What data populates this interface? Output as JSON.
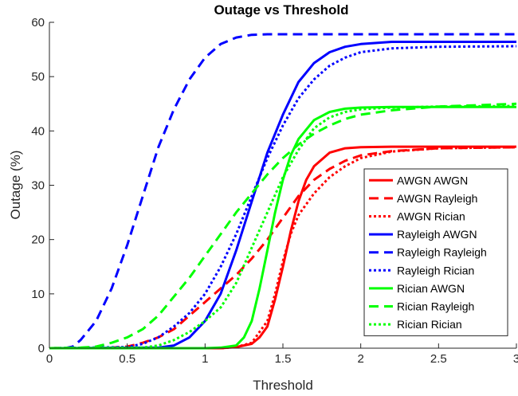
{
  "chart_data": {
    "type": "line",
    "title": "Outage vs Threshold",
    "xlabel": "Threshold",
    "ylabel": "Outage (%)",
    "xlim": [
      0,
      3
    ],
    "ylim": [
      0,
      60
    ],
    "xticks": [
      0,
      0.5,
      1,
      1.5,
      2,
      2.5,
      3
    ],
    "xtick_labels": [
      "0",
      "0.5",
      "1",
      "1.5",
      "2",
      "2.5",
      "3"
    ],
    "yticks": [
      0,
      10,
      20,
      30,
      40,
      50,
      60
    ],
    "ytick_labels": [
      "0",
      "10",
      "20",
      "30",
      "40",
      "50",
      "60"
    ],
    "grid": false,
    "legend_position": "right",
    "colors": {
      "AWGN": "#ff0000",
      "Rayleigh": "#0000ff",
      "Rician": "#00ff00"
    },
    "series": [
      {
        "name": "AWGN AWGN",
        "color": "#ff0000",
        "style": "solid",
        "x": [
          0,
          1.1,
          1.2,
          1.3,
          1.35,
          1.4,
          1.45,
          1.5,
          1.55,
          1.6,
          1.65,
          1.7,
          1.8,
          1.9,
          2.0,
          2.2,
          2.5,
          3.0
        ],
        "y": [
          0,
          0,
          0.2,
          0.8,
          2,
          4,
          9,
          15,
          21.5,
          27,
          31,
          33.5,
          36,
          36.8,
          37,
          37.1,
          37.1,
          37.1
        ]
      },
      {
        "name": "AWGN Rayleigh",
        "color": "#ff0000",
        "style": "dashed",
        "x": [
          0,
          0.4,
          0.5,
          0.6,
          0.7,
          0.8,
          0.9,
          1.0,
          1.1,
          1.2,
          1.3,
          1.4,
          1.5,
          1.6,
          1.7,
          1.8,
          1.9,
          2.0,
          2.2,
          2.5,
          3.0
        ],
        "y": [
          0,
          0.1,
          0.3,
          1,
          2,
          3.5,
          6,
          8.5,
          11,
          13.5,
          16.5,
          20,
          24,
          28,
          31,
          33,
          34.5,
          35.5,
          36.3,
          36.8,
          37
        ]
      },
      {
        "name": "AWGN Rician",
        "color": "#ff0000",
        "style": "dotted",
        "x": [
          0,
          1.1,
          1.2,
          1.3,
          1.4,
          1.45,
          1.5,
          1.55,
          1.6,
          1.7,
          1.8,
          1.9,
          2.0,
          2.2,
          2.5,
          3.0
        ],
        "y": [
          0,
          0,
          0.2,
          1,
          5,
          10,
          16,
          21,
          24.5,
          28.5,
          31.5,
          33.5,
          35,
          36.2,
          36.8,
          37
        ]
      },
      {
        "name": "Rayleigh AWGN",
        "color": "#0000ff",
        "style": "solid",
        "x": [
          0,
          0.7,
          0.8,
          0.9,
          1.0,
          1.1,
          1.2,
          1.3,
          1.4,
          1.5,
          1.6,
          1.7,
          1.8,
          1.9,
          2.0,
          2.2,
          2.5,
          3.0
        ],
        "y": [
          0,
          0.1,
          0.5,
          2,
          5,
          10,
          18,
          27,
          36,
          43,
          49,
          52.5,
          54.5,
          55.5,
          56,
          56.4,
          56.4,
          56.4
        ]
      },
      {
        "name": "Rayleigh Rayleigh",
        "color": "#0000ff",
        "style": "dashed",
        "x": [
          0,
          0.1,
          0.15,
          0.2,
          0.3,
          0.4,
          0.5,
          0.6,
          0.7,
          0.8,
          0.9,
          1.0,
          1.1,
          1.2,
          1.3,
          1.4,
          1.5,
          1.6,
          1.8,
          2.0,
          2.5,
          3.0
        ],
        "y": [
          0,
          0,
          0.3,
          1.5,
          5,
          11,
          19,
          28,
          37,
          44,
          49.5,
          53.5,
          56,
          57.2,
          57.7,
          57.8,
          57.8,
          57.8,
          57.8,
          57.8,
          57.8,
          57.8
        ]
      },
      {
        "name": "Rayleigh Rician",
        "color": "#0000ff",
        "style": "dotted",
        "x": [
          0,
          0.5,
          0.6,
          0.7,
          0.8,
          0.9,
          1.0,
          1.1,
          1.2,
          1.3,
          1.4,
          1.5,
          1.6,
          1.7,
          1.8,
          1.9,
          2.0,
          2.2,
          2.5,
          3.0
        ],
        "y": [
          0,
          0.2,
          0.8,
          2,
          4,
          6.5,
          10,
          15,
          21,
          28,
          35,
          41,
          46,
          49.5,
          52,
          53.5,
          54.5,
          55.2,
          55.5,
          55.6
        ]
      },
      {
        "name": "Rician AWGN",
        "color": "#00ff00",
        "style": "solid",
        "x": [
          0,
          1.0,
          1.1,
          1.2,
          1.25,
          1.3,
          1.35,
          1.4,
          1.45,
          1.5,
          1.55,
          1.6,
          1.7,
          1.8,
          1.9,
          2.0,
          2.2,
          2.5,
          3.0
        ],
        "y": [
          0,
          0,
          0.1,
          0.5,
          2,
          5,
          11,
          18,
          25,
          31,
          35.5,
          38.5,
          42,
          43.5,
          44.1,
          44.3,
          44.4,
          44.4,
          44.4
        ]
      },
      {
        "name": "Rician Rayleigh",
        "color": "#00ff00",
        "style": "dashed",
        "x": [
          0,
          0.2,
          0.3,
          0.4,
          0.5,
          0.6,
          0.7,
          0.8,
          0.9,
          1.0,
          1.1,
          1.2,
          1.3,
          1.4,
          1.5,
          1.6,
          1.7,
          1.8,
          1.9,
          2.0,
          2.2,
          2.5,
          3.0
        ],
        "y": [
          0,
          0.1,
          0.3,
          1,
          2,
          3.5,
          6,
          9.5,
          13,
          17,
          21,
          25,
          28.5,
          32,
          35,
          37.5,
          39.5,
          41,
          42.2,
          43,
          43.8,
          44.5,
          45
        ]
      },
      {
        "name": "Rician Rician",
        "color": "#00ff00",
        "style": "dotted",
        "x": [
          0,
          0.6,
          0.7,
          0.8,
          0.9,
          1.0,
          1.1,
          1.2,
          1.3,
          1.4,
          1.5,
          1.6,
          1.7,
          1.8,
          1.9,
          2.0,
          2.2,
          2.5,
          3.0
        ],
        "y": [
          0,
          0.1,
          0.5,
          1.5,
          3,
          5,
          7.5,
          12,
          18.5,
          25,
          31.5,
          36.5,
          40.5,
          42.5,
          43.5,
          44,
          44.3,
          44.5,
          44.6
        ]
      }
    ]
  }
}
